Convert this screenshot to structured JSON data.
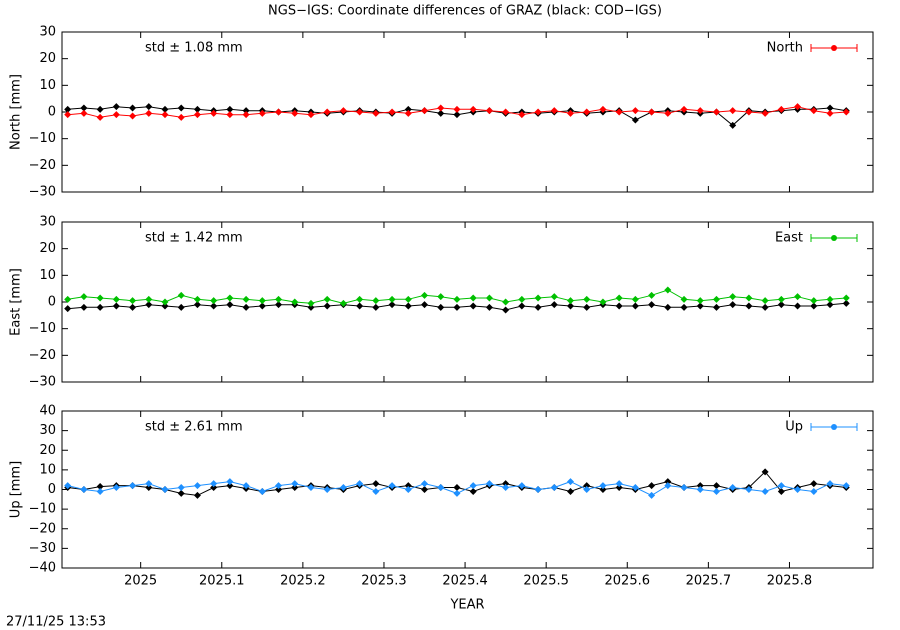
{
  "title": "NGS−IGS: Coordinate differences of GRAZ (black: COD−IGS)",
  "timestamp": "27/11/25 13:53",
  "chart_data": [
    {
      "type": "line",
      "ylabel": "North [mm]",
      "annotation": "std ± 1.08 mm",
      "legend": "upper right",
      "x": [
        2024.91,
        2024.93,
        2024.95,
        2024.97,
        2024.99,
        2025.01,
        2025.03,
        2025.05,
        2025.07,
        2025.09,
        2025.11,
        2025.13,
        2025.15,
        2025.17,
        2025.19,
        2025.21,
        2025.23,
        2025.25,
        2025.27,
        2025.29,
        2025.31,
        2025.33,
        2025.35,
        2025.37,
        2025.39,
        2025.41,
        2025.43,
        2025.45,
        2025.47,
        2025.49,
        2025.51,
        2025.53,
        2025.55,
        2025.57,
        2025.59,
        2025.61,
        2025.63,
        2025.65,
        2025.67,
        2025.69,
        2025.71,
        2025.73,
        2025.75,
        2025.77,
        2025.79,
        2025.81,
        2025.83,
        2025.85,
        2025.87
      ],
      "series": [
        {
          "color": "#000000",
          "values": [
            1,
            1.5,
            1,
            2,
            1.5,
            2,
            1,
            1.5,
            1,
            0.5,
            1,
            0.5,
            0.5,
            0,
            0.5,
            0,
            -0.5,
            0,
            0.5,
            0,
            -0.5,
            1,
            0.5,
            -0.5,
            -1,
            0,
            0.5,
            -0.5,
            0,
            -0.5,
            0,
            0.5,
            -0.5,
            0,
            0.5,
            -3,
            0,
            0.5,
            0,
            -0.5,
            0,
            -5,
            0.5,
            0,
            0.5,
            1,
            1,
            1.5,
            0.5
          ]
        },
        {
          "name": "North",
          "color": "#ff0000",
          "values": [
            -1,
            -0.5,
            -2,
            -1,
            -1.5,
            -0.5,
            -1,
            -2,
            -1,
            -0.5,
            -1,
            -1,
            -0.5,
            0,
            -0.5,
            -1,
            0,
            0.5,
            0,
            -0.5,
            0,
            -0.5,
            0.5,
            1.5,
            1,
            1,
            0.5,
            0,
            -1,
            0,
            0.5,
            -0.5,
            0,
            1,
            0,
            0.5,
            0,
            -0.5,
            1,
            0.5,
            0,
            0.5,
            0,
            -0.5,
            1,
            2,
            0.5,
            -0.5,
            0
          ]
        }
      ],
      "xlim": [
        2024.903,
        2025.903
      ],
      "xticks": [
        2025,
        2025.1,
        2025.2,
        2025.3,
        2025.4,
        2025.5,
        2025.6,
        2025.7,
        2025.8
      ],
      "ylim": [
        -30,
        30
      ],
      "yticks": [
        {
          "value": -30,
          "label": "−30"
        },
        {
          "value": -20,
          "label": "−20"
        },
        {
          "value": -10,
          "label": "−10"
        },
        0,
        10,
        20,
        30
      ]
    },
    {
      "type": "line",
      "ylabel": "East [mm]",
      "annotation": "std ± 1.42 mm",
      "legend": "upper right",
      "x": [
        2024.91,
        2024.93,
        2024.95,
        2024.97,
        2024.99,
        2025.01,
        2025.03,
        2025.05,
        2025.07,
        2025.09,
        2025.11,
        2025.13,
        2025.15,
        2025.17,
        2025.19,
        2025.21,
        2025.23,
        2025.25,
        2025.27,
        2025.29,
        2025.31,
        2025.33,
        2025.35,
        2025.37,
        2025.39,
        2025.41,
        2025.43,
        2025.45,
        2025.47,
        2025.49,
        2025.51,
        2025.53,
        2025.55,
        2025.57,
        2025.59,
        2025.61,
        2025.63,
        2025.65,
        2025.67,
        2025.69,
        2025.71,
        2025.73,
        2025.75,
        2025.77,
        2025.79,
        2025.81,
        2025.83,
        2025.85,
        2025.87
      ],
      "series": [
        {
          "color": "#000000",
          "values": [
            -2.5,
            -2,
            -2,
            -1.5,
            -2,
            -1,
            -1.5,
            -2,
            -1,
            -1.5,
            -1,
            -2,
            -1.5,
            -1,
            -1,
            -2,
            -1.5,
            -1,
            -1.5,
            -2,
            -1,
            -1.5,
            -1,
            -2,
            -2,
            -1.5,
            -2,
            -3,
            -1.5,
            -2,
            -1,
            -1.5,
            -2,
            -1,
            -1.5,
            -1.5,
            -1,
            -2,
            -2,
            -1.5,
            -2,
            -1,
            -1.5,
            -2,
            -1,
            -1.5,
            -1.5,
            -1,
            -0.5
          ]
        },
        {
          "name": "East",
          "color": "#00c000",
          "values": [
            1,
            2,
            1.5,
            1,
            0.5,
            1,
            0,
            2.5,
            1,
            0.5,
            1.5,
            1,
            0.5,
            1,
            0,
            -0.5,
            1,
            -0.5,
            1,
            0.5,
            1,
            1,
            2.5,
            2,
            1,
            1.5,
            1.5,
            0,
            1,
            1.5,
            2,
            0.5,
            1,
            0,
            1.5,
            1,
            2.5,
            4.5,
            1,
            0.5,
            1,
            2,
            1.5,
            0.5,
            1,
            2,
            0.5,
            1,
            1.5
          ]
        }
      ],
      "xlim": [
        2024.903,
        2025.903
      ],
      "xticks": [
        2025,
        2025.1,
        2025.2,
        2025.3,
        2025.4,
        2025.5,
        2025.6,
        2025.7,
        2025.8
      ],
      "ylim": [
        -30,
        30
      ],
      "yticks": [
        {
          "value": -30,
          "label": "−30"
        },
        {
          "value": -20,
          "label": "−20"
        },
        {
          "value": -10,
          "label": "−10"
        },
        0,
        10,
        20,
        30
      ]
    },
    {
      "type": "line",
      "ylabel": "Up [mm]",
      "xlabel": "YEAR",
      "annotation": "std ± 2.61 mm",
      "legend": "upper right",
      "x": [
        2024.91,
        2024.93,
        2024.95,
        2024.97,
        2024.99,
        2025.01,
        2025.03,
        2025.05,
        2025.07,
        2025.09,
        2025.11,
        2025.13,
        2025.15,
        2025.17,
        2025.19,
        2025.21,
        2025.23,
        2025.25,
        2025.27,
        2025.29,
        2025.31,
        2025.33,
        2025.35,
        2025.37,
        2025.39,
        2025.41,
        2025.43,
        2025.45,
        2025.47,
        2025.49,
        2025.51,
        2025.53,
        2025.55,
        2025.57,
        2025.59,
        2025.61,
        2025.63,
        2025.65,
        2025.67,
        2025.69,
        2025.71,
        2025.73,
        2025.75,
        2025.77,
        2025.79,
        2025.81,
        2025.83,
        2025.85,
        2025.87
      ],
      "series": [
        {
          "color": "#000000",
          "values": [
            1,
            0,
            1.5,
            2,
            2,
            1,
            0,
            -2,
            -3,
            1,
            2,
            0.5,
            -1,
            0,
            1,
            2,
            1,
            0,
            2,
            3,
            1,
            2,
            0,
            1,
            1,
            -1,
            2,
            3,
            1,
            0,
            1,
            -1,
            2,
            0,
            1,
            0,
            2,
            4,
            1,
            2,
            2,
            0,
            1,
            9,
            -1,
            1,
            3,
            2,
            1
          ]
        },
        {
          "name": "Up",
          "color": "#1e90ff",
          "values": [
            2,
            0,
            -1,
            1,
            2,
            3,
            0,
            1,
            2,
            3,
            4,
            2,
            -1,
            2,
            3,
            1,
            0,
            1,
            3,
            -1,
            2,
            0,
            3,
            1,
            -2,
            2,
            3,
            1,
            2,
            0,
            1,
            4,
            0,
            2,
            3,
            1,
            -3,
            2,
            1,
            0,
            -1,
            1,
            0,
            -1,
            2,
            0,
            -1,
            3,
            2
          ]
        }
      ],
      "xlim": [
        2024.903,
        2025.903
      ],
      "xticks": [
        2025,
        2025.1,
        2025.2,
        2025.3,
        2025.4,
        2025.5,
        2025.6,
        2025.7,
        2025.8
      ],
      "ylim": [
        -40,
        40
      ],
      "yticks": [
        {
          "value": -40,
          "label": "−40"
        },
        {
          "value": -30,
          "label": "−30"
        },
        {
          "value": -20,
          "label": "−20"
        },
        {
          "value": -10,
          "label": "−10"
        },
        0,
        10,
        20,
        30,
        40
      ]
    }
  ]
}
